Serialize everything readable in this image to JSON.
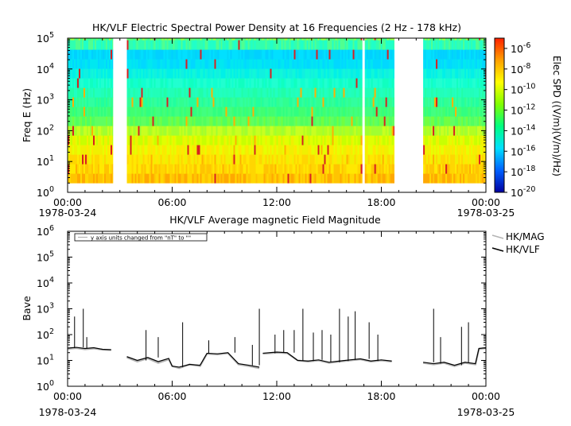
{
  "chart_data": [
    {
      "type": "heatmap",
      "title": "HK/VLF  Electric Spectral Power Density at 16 Frequencies (2 Hz - 178 kHz)",
      "ylabel": "Freq E (Hz)",
      "xlabel": "",
      "x_ticks": [
        "00:00",
        "06:00",
        "12:00",
        "18:00",
        "00:00"
      ],
      "x_start_date": "1978-03-24",
      "x_end_date": "1978-03-25",
      "y_scale": "log",
      "ylim": [
        1,
        100000
      ],
      "y_ticks": [
        {
          "base": "10",
          "exp": "0"
        },
        {
          "base": "10",
          "exp": "1"
        },
        {
          "base": "10",
          "exp": "2"
        },
        {
          "base": "10",
          "exp": "3"
        },
        {
          "base": "10",
          "exp": "4"
        },
        {
          "base": "10",
          "exp": "5"
        }
      ],
      "freq_range_hz": [
        2,
        178000
      ],
      "num_frequencies": 16,
      "time_range_hours": [
        0,
        24
      ],
      "data_intervals_hours": [
        [
          0,
          2.6
        ],
        [
          3.4,
          16.9
        ],
        [
          17.05,
          18.7
        ],
        [
          20.4,
          24
        ]
      ],
      "colorbar": {
        "label": "Elec SPD ((V/m)(V/m)/Hz)",
        "scale": "log",
        "range": [
          1e-20,
          1e-05
        ],
        "ticks": [
          {
            "base": "10",
            "exp": "-6"
          },
          {
            "base": "10",
            "exp": "-8"
          },
          {
            "base": "10",
            "exp": "-10"
          },
          {
            "base": "10",
            "exp": "-12"
          },
          {
            "base": "10",
            "exp": "-14"
          },
          {
            "base": "10",
            "exp": "-16"
          },
          {
            "base": "10",
            "exp": "-18"
          },
          {
            "base": "10",
            "exp": "-20"
          }
        ],
        "colors": [
          "#0000a0",
          "#0060ff",
          "#00e0ff",
          "#00ff80",
          "#80ff00",
          "#ffff00",
          "#ffa000",
          "#ff2000"
        ]
      }
    },
    {
      "type": "line",
      "title": "HK/VLF  Average magnetic Field Magnitude",
      "ylabel": "Bave",
      "xlabel": "",
      "x_ticks": [
        "00:00",
        "06:00",
        "12:00",
        "18:00",
        "00:00"
      ],
      "x_start_date": "1978-03-24",
      "x_end_date": "1978-03-25",
      "y_scale": "log",
      "ylim": [
        1,
        1000000
      ],
      "y_ticks": [
        {
          "base": "10",
          "exp": "0"
        },
        {
          "base": "10",
          "exp": "1"
        },
        {
          "base": "10",
          "exp": "2"
        },
        {
          "base": "10",
          "exp": "3"
        },
        {
          "base": "10",
          "exp": "4"
        },
        {
          "base": "10",
          "exp": "5"
        },
        {
          "base": "10",
          "exp": "6"
        }
      ],
      "annotation": "y axis units changed from \"nT\" to \"\"",
      "grid": false,
      "legend_position": "right",
      "series": [
        {
          "name": "HK/MAG",
          "color": "#b4b4b4",
          "segments": [
            {
              "x": [
                0,
                0.5,
                1.0,
                1.5,
                2.0,
                2.5
              ],
              "y": [
                28,
                30,
                27,
                29,
                26,
                25
              ]
            },
            {
              "x": [
                3.4,
                4.0,
                4.6,
                5.2,
                5.8,
                6.0,
                6.4,
                7.0,
                7.6,
                8.0,
                8.6,
                9.2,
                9.8,
                10.4,
                11.0
              ],
              "y": [
                13,
                9,
                12,
                8,
                11,
                6,
                5,
                7,
                6,
                18,
                17,
                19,
                7,
                6,
                5
              ]
            },
            {
              "x": [
                11.2,
                12.0,
                12.6,
                13.2,
                13.8,
                14.4,
                15.0,
                15.6,
                16.2,
                16.8,
                17.4,
                18.0,
                18.6
              ],
              "y": [
                18,
                20,
                19,
                10,
                9,
                10,
                8,
                9,
                10,
                11,
                9,
                10,
                9
              ]
            },
            {
              "x": [
                20.4,
                21.0,
                21.6,
                22.2,
                22.8,
                23.4,
                23.6,
                24.0
              ],
              "y": [
                8,
                7,
                8,
                6,
                8,
                7,
                28,
                30
              ]
            }
          ]
        },
        {
          "name": "HK/VLF",
          "color": "#000000",
          "segments": [
            {
              "x": [
                0,
                0.5,
                1.0,
                1.5,
                2.0,
                2.5
              ],
              "y": [
                30,
                32,
                29,
                31,
                27,
                26
              ]
            },
            {
              "x": [
                3.4,
                4.0,
                4.6,
                5.2,
                5.8,
                6.0,
                6.4,
                7.0,
                7.6,
                8.0,
                8.6,
                9.2,
                9.8,
                10.4,
                11.0
              ],
              "y": [
                14,
                10,
                13,
                9,
                12,
                6,
                5.5,
                7,
                6.5,
                19,
                18,
                20,
                7.5,
                6.5,
                5.5
              ]
            },
            {
              "x": [
                11.2,
                12.0,
                12.6,
                13.2,
                13.8,
                14.4,
                15.0,
                15.6,
                16.2,
                16.8,
                17.4,
                18.0,
                18.6
              ],
              "y": [
                19,
                21,
                20,
                10,
                9.5,
                10.5,
                8.5,
                9.5,
                10.5,
                11.5,
                9.5,
                10.5,
                9.5
              ]
            },
            {
              "x": [
                20.4,
                21.0,
                21.6,
                22.2,
                22.8,
                23.4,
                23.6,
                24.0
              ],
              "y": [
                8.5,
                7.5,
                8.5,
                6.5,
                8.5,
                7.5,
                29,
                31
              ]
            }
          ]
        }
      ],
      "spikes": [
        {
          "x": 0.4,
          "y": 500
        },
        {
          "x": 0.9,
          "y": 1000
        },
        {
          "x": 1.1,
          "y": 80
        },
        {
          "x": 4.5,
          "y": 150
        },
        {
          "x": 5.2,
          "y": 80
        },
        {
          "x": 6.6,
          "y": 300
        },
        {
          "x": 8.1,
          "y": 60
        },
        {
          "x": 9.6,
          "y": 80
        },
        {
          "x": 10.6,
          "y": 40
        },
        {
          "x": 11.0,
          "y": 1000
        },
        {
          "x": 11.9,
          "y": 100
        },
        {
          "x": 12.4,
          "y": 150
        },
        {
          "x": 13.0,
          "y": 150
        },
        {
          "x": 13.5,
          "y": 1000
        },
        {
          "x": 14.1,
          "y": 120
        },
        {
          "x": 14.6,
          "y": 150
        },
        {
          "x": 15.1,
          "y": 100
        },
        {
          "x": 15.6,
          "y": 1000
        },
        {
          "x": 16.1,
          "y": 500
        },
        {
          "x": 16.5,
          "y": 800
        },
        {
          "x": 17.3,
          "y": 300
        },
        {
          "x": 17.8,
          "y": 100
        },
        {
          "x": 21.0,
          "y": 1000
        },
        {
          "x": 21.4,
          "y": 80
        },
        {
          "x": 22.6,
          "y": 200
        },
        {
          "x": 23.0,
          "y": 300
        }
      ]
    }
  ]
}
